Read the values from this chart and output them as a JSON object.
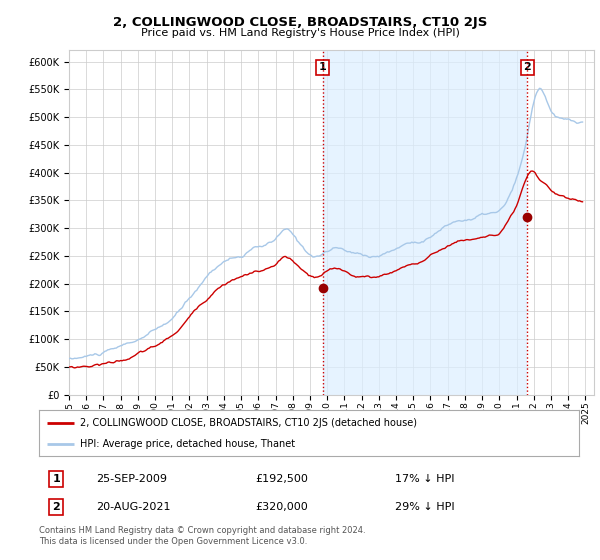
{
  "title": "2, COLLINGWOOD CLOSE, BROADSTAIRS, CT10 2JS",
  "subtitle": "Price paid vs. HM Land Registry's House Price Index (HPI)",
  "footer": "Contains HM Land Registry data © Crown copyright and database right 2024.\nThis data is licensed under the Open Government Licence v3.0.",
  "legend_line1": "2, COLLINGWOOD CLOSE, BROADSTAIRS, CT10 2JS (detached house)",
  "legend_line2": "HPI: Average price, detached house, Thanet",
  "transaction1_label": "1",
  "transaction1_date": "25-SEP-2009",
  "transaction1_price": "£192,500",
  "transaction1_hpi": "17% ↓ HPI",
  "transaction2_label": "2",
  "transaction2_date": "20-AUG-2021",
  "transaction2_price": "£320,000",
  "transaction2_hpi": "29% ↓ HPI",
  "xlim_start": 1995.0,
  "xlim_end": 2025.5,
  "ylim_bottom": 0,
  "ylim_top": 620000,
  "yticks": [
    0,
    50000,
    100000,
    150000,
    200000,
    250000,
    300000,
    350000,
    400000,
    450000,
    500000,
    550000,
    600000
  ],
  "ytick_labels": [
    "£0",
    "£50K",
    "£100K",
    "£150K",
    "£200K",
    "£250K",
    "£300K",
    "£350K",
    "£400K",
    "£450K",
    "£500K",
    "£550K",
    "£600K"
  ],
  "xticks": [
    1995,
    1996,
    1997,
    1998,
    1999,
    2000,
    2001,
    2002,
    2003,
    2004,
    2005,
    2006,
    2007,
    2008,
    2009,
    2010,
    2011,
    2012,
    2013,
    2014,
    2015,
    2016,
    2017,
    2018,
    2019,
    2020,
    2021,
    2022,
    2023,
    2024,
    2025
  ],
  "hpi_color": "#a8c8e8",
  "price_color": "#cc0000",
  "fill_color": "#dceeff",
  "transaction_marker_color": "#990000",
  "vline_color": "#cc0000",
  "background_color": "#ffffff",
  "grid_color": "#cccccc",
  "transaction1_x": 2009.73,
  "transaction1_y": 192500,
  "transaction2_x": 2021.63,
  "transaction2_y": 320000
}
